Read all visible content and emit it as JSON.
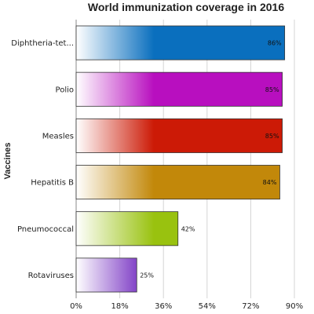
{
  "chart_data": {
    "type": "bar",
    "orientation": "horizontal",
    "title": "World immunization coverage in 2016",
    "xlabel": "",
    "ylabel": "Vaccines",
    "categories": [
      "Diphtheria-tet...",
      "Polio",
      "Measles",
      "Hepatitis B",
      "Pneumococcal",
      "Rotaviruses"
    ],
    "values": [
      86,
      85,
      85,
      84,
      42,
      25
    ],
    "value_labels": [
      "86%",
      "85%",
      "85%",
      "84%",
      "42%",
      "25%"
    ],
    "colors": [
      "#0a6fbe",
      "#b80fbf",
      "#cc1a06",
      "#c2880a",
      "#99c20f",
      "#600fb8"
    ],
    "xlim": [
      0,
      90
    ],
    "x_ticks": [
      0,
      18,
      36,
      54,
      72,
      90
    ],
    "x_tick_labels": [
      "0%",
      "18%",
      "36%",
      "54%",
      "72%",
      "90%"
    ],
    "grid": true,
    "legend": "none"
  }
}
